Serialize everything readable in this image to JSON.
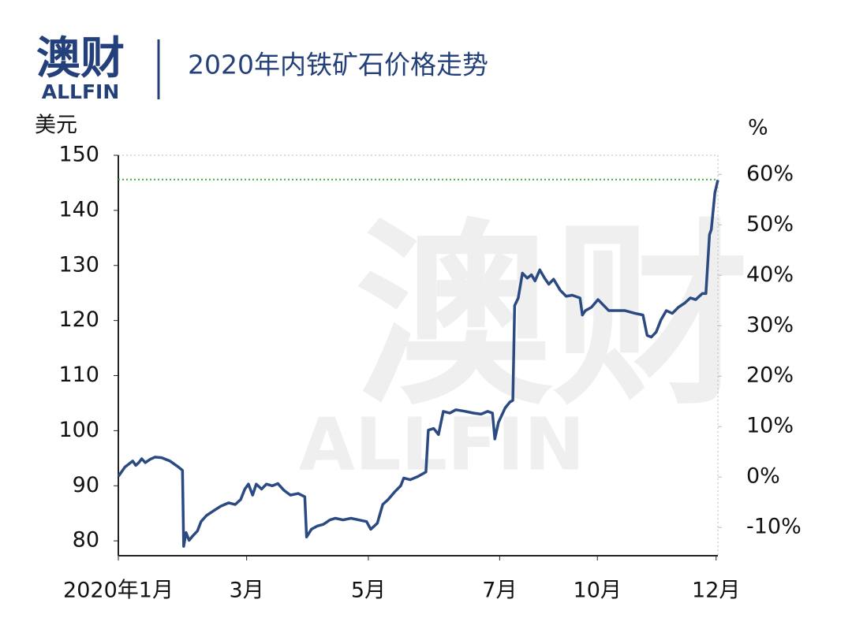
{
  "logo": {
    "main": "澳财",
    "sub": "ALLFIN"
  },
  "watermark": {
    "main": "澳财",
    "sub": "ALLFIN"
  },
  "chart_data": {
    "type": "line",
    "title": "2020年内铁矿石价格走势",
    "y_label": "美元",
    "y2_label": "%",
    "x": [
      0,
      1.1,
      1.7,
      2.4,
      2.9,
      3.4,
      3.9,
      4.5,
      5.3,
      6.1,
      7.2,
      8.6,
      9.9,
      10.7,
      10.9,
      11.3,
      11.8,
      12.5,
      13.2,
      13.8,
      14.7,
      15.8,
      17.1,
      18.4,
      19.5,
      20.4,
      21.1,
      21.7,
      22.4,
      23.0,
      23.9,
      24.7,
      25.7,
      26.6,
      27.6,
      28.7,
      30.0,
      31.1,
      31.4,
      32.2,
      33.2,
      34.2,
      35.3,
      36.2,
      37.5,
      38.8,
      40.1,
      41.4,
      42.1,
      43.2,
      44.1,
      45.0,
      46.1,
      47.1,
      47.6,
      48.7,
      50.0,
      51.3,
      51.7,
      52.6,
      53.4,
      54.2,
      55.3,
      56.3,
      57.9,
      59.2,
      60.5,
      61.6,
      62.4,
      62.8,
      63.4,
      64.5,
      65.3,
      65.8,
      66.1,
      66.7,
      67.4,
      68.2,
      68.9,
      69.5,
      70.3,
      71.1,
      71.8,
      72.6,
      73.7,
      74.7,
      75.7,
      77.0,
      77.4,
      77.9,
      78.9,
      80.0,
      80.9,
      81.8,
      82.9,
      84.5,
      86.2,
      87.5,
      88.2,
      88.9,
      89.7,
      90.5,
      91.4,
      92.4,
      93.4,
      94.5,
      95.4,
      96.3,
      97.4,
      98.0,
      98.6,
      98.9,
      99.5,
      100
    ],
    "series": [
      {
        "name": "铁矿石价格",
        "color": "#2b4a82",
        "values": [
          91.7,
          93.4,
          93.9,
          94.5,
          93.7,
          94.2,
          94.9,
          94.2,
          94.8,
          95.2,
          95.1,
          94.5,
          93.5,
          92.8,
          79.0,
          81.5,
          80.1,
          81.0,
          81.8,
          83.5,
          84.6,
          85.4,
          86.3,
          86.9,
          86.6,
          87.5,
          89.4,
          90.3,
          88.3,
          90.3,
          89.4,
          90.3,
          90.0,
          90.4,
          89.2,
          88.3,
          88.6,
          88.0,
          80.7,
          82.1,
          82.7,
          83.0,
          83.8,
          84.1,
          83.8,
          84.1,
          83.8,
          83.5,
          82.1,
          83.2,
          86.6,
          87.5,
          88.9,
          90.0,
          91.4,
          91.1,
          91.7,
          92.5,
          100.1,
          100.4,
          99.3,
          103.5,
          103.2,
          103.8,
          103.5,
          103.2,
          103.0,
          103.5,
          103.2,
          98.5,
          101.5,
          104.1,
          105.2,
          105.5,
          122.7,
          124.1,
          128.6,
          127.7,
          128.3,
          127.2,
          129.2,
          127.7,
          126.6,
          127.5,
          125.5,
          124.4,
          124.6,
          124.1,
          121.0,
          121.8,
          122.4,
          123.8,
          122.8,
          121.8,
          121.8,
          121.8,
          121.3,
          121.0,
          117.3,
          117.0,
          117.9,
          120.1,
          121.8,
          121.3,
          122.4,
          123.2,
          124.1,
          123.8,
          124.9,
          124.9,
          135.6,
          136.5,
          143.2,
          145.5
        ]
      }
    ],
    "xlim": [
      0,
      100
    ],
    "xticks": [
      {
        "value": 0,
        "label": "2020年1月"
      },
      {
        "value": 21.4,
        "label": "3月"
      },
      {
        "value": 41.7,
        "label": "5月"
      },
      {
        "value": 63.6,
        "label": "7月"
      },
      {
        "value": 79.9,
        "label": "10月"
      },
      {
        "value": 99.7,
        "label": "12月"
      }
    ],
    "ylim": [
      77.3,
      150
    ],
    "yticks": [
      80,
      90,
      100,
      110,
      120,
      130,
      140,
      150
    ],
    "y2lim": [
      -15.6,
      63.8
    ],
    "y2ticks": [
      {
        "value": -10,
        "label": "-10%"
      },
      {
        "value": 0,
        "label": "0%"
      },
      {
        "value": 10,
        "label": "10%"
      },
      {
        "value": 20,
        "label": "20%"
      },
      {
        "value": 30,
        "label": "30%"
      },
      {
        "value": 40,
        "label": "40%"
      },
      {
        "value": 50,
        "label": "50%"
      },
      {
        "value": 60,
        "label": "60%"
      }
    ],
    "reference_line": {
      "value": 145.6,
      "color": "#3cb043"
    }
  }
}
